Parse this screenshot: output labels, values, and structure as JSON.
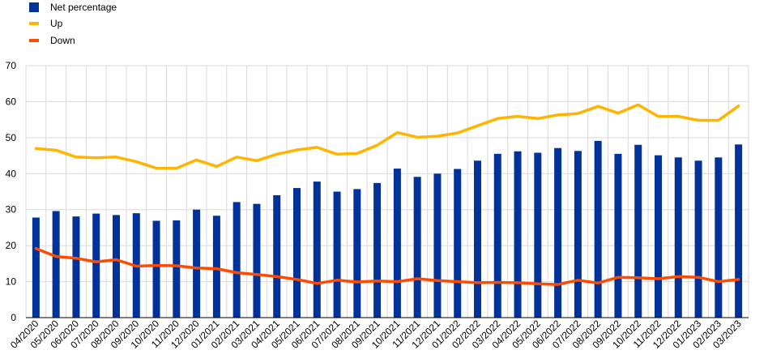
{
  "colors": {
    "bar": "#003299",
    "up": "#FFB400",
    "down": "#FF4B00",
    "grid": "#d9d9d9",
    "axis": "#000000"
  },
  "legend": [
    {
      "label": "Net percentage",
      "kind": "bar",
      "color_key": "bar"
    },
    {
      "label": "Up",
      "kind": "line",
      "color_key": "up"
    },
    {
      "label": "Down",
      "kind": "line",
      "color_key": "down"
    }
  ],
  "chart_data": {
    "type": "bar",
    "title": "",
    "xlabel": "",
    "ylabel": "",
    "ylim": [
      0,
      70
    ],
    "yticks": [
      0,
      10,
      20,
      30,
      40,
      50,
      60,
      70
    ],
    "grid": "vertical and horizontal",
    "legend_position": "top-left",
    "categories": [
      "04/2020",
      "05/2020",
      "06/2020",
      "07/2020",
      "08/2020",
      "09/2020",
      "10/2020",
      "11/2020",
      "12/2020",
      "01/2021",
      "02/2021",
      "03/2021",
      "04/2021",
      "05/2021",
      "06/2021",
      "07/2021",
      "08/2021",
      "09/2021",
      "10/2021",
      "11/2021",
      "12/2021",
      "01/2022",
      "02/2022",
      "03/2022",
      "04/2022",
      "05/2022",
      "06/2022",
      "07/2022",
      "08/2022",
      "09/2022",
      "10/2022",
      "11/2022",
      "12/2022",
      "01/2023",
      "02/2023",
      "03/2023"
    ],
    "series": [
      {
        "name": "Net percentage",
        "type": "bar",
        "values": [
          27.8,
          29.6,
          28.1,
          28.9,
          28.5,
          29.0,
          26.9,
          27.0,
          30.0,
          28.3,
          32.1,
          31.6,
          34.0,
          36.0,
          37.8,
          35.0,
          35.7,
          37.4,
          41.4,
          39.1,
          40.0,
          41.3,
          43.6,
          45.5,
          46.2,
          45.8,
          47.1,
          46.3,
          49.1,
          45.5,
          48.0,
          45.1,
          44.5,
          43.6,
          44.5,
          48.1
        ]
      },
      {
        "name": "Up",
        "type": "line",
        "values": [
          47.0,
          46.5,
          44.6,
          44.4,
          44.6,
          43.3,
          41.5,
          41.5,
          43.8,
          42.0,
          44.6,
          43.6,
          45.4,
          46.6,
          47.3,
          45.4,
          45.6,
          47.9,
          51.4,
          50.1,
          50.4,
          51.3,
          53.3,
          55.3,
          55.9,
          55.3,
          56.3,
          56.7,
          58.7,
          56.8,
          59.1,
          55.9,
          55.9,
          54.8,
          54.8,
          58.8
        ]
      },
      {
        "name": "Down",
        "type": "line",
        "values": [
          19.2,
          17.0,
          16.5,
          15.5,
          16.1,
          14.3,
          14.5,
          14.4,
          13.8,
          13.6,
          12.5,
          12.0,
          11.4,
          10.6,
          9.5,
          10.4,
          9.9,
          10.2,
          10.0,
          10.8,
          10.3,
          10.0,
          9.7,
          9.8,
          9.7,
          9.4,
          9.2,
          10.4,
          9.6,
          11.2,
          11.1,
          10.8,
          11.4,
          11.2,
          10.0,
          10.6
        ]
      }
    ]
  }
}
